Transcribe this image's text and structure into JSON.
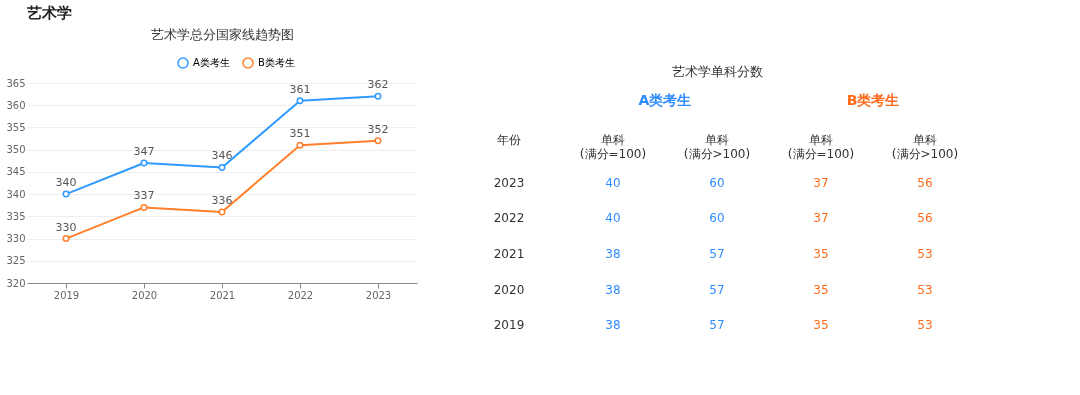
{
  "chart_data": [
    {
      "type": "line",
      "title": "艺术学总分国家线趋势图",
      "annotations": [
        "艺术学"
      ],
      "categories": [
        "2019",
        "2020",
        "2021",
        "2022",
        "2023"
      ],
      "series": [
        {
          "name": "A类考生",
          "color": "#2f9bff",
          "values": [
            340,
            347,
            346,
            361,
            362
          ]
        },
        {
          "name": "B类考生",
          "color": "#ff7f2a",
          "values": [
            330,
            337,
            336,
            351,
            352
          ]
        }
      ],
      "ylim": [
        320,
        365
      ],
      "yticks": [
        320,
        325,
        330,
        335,
        340,
        345,
        350,
        355,
        360,
        365
      ],
      "grid": "y",
      "legend": "top",
      "marker": "circle",
      "data_labels": true
    },
    {
      "type": "heatmap",
      "title": "艺术学单科分数",
      "annotations": [
        "A类考生",
        "B类考生",
        "年份"
      ],
      "categories": [
        "单科\n(满分=100)",
        "单科\n(满分>100)",
        "单科\n(满分=100)",
        "单科\n(满分>100)"
      ],
      "y_categories": [
        "2023",
        "2022",
        "2021",
        "2020",
        "2019"
      ],
      "cells": [
        [
          40,
          60,
          37,
          56
        ],
        [
          40,
          60,
          37,
          56
        ],
        [
          38,
          57,
          35,
          53
        ],
        [
          38,
          57,
          35,
          53
        ],
        [
          38,
          57,
          35,
          53
        ]
      ],
      "data_labels": true
    }
  ]
}
